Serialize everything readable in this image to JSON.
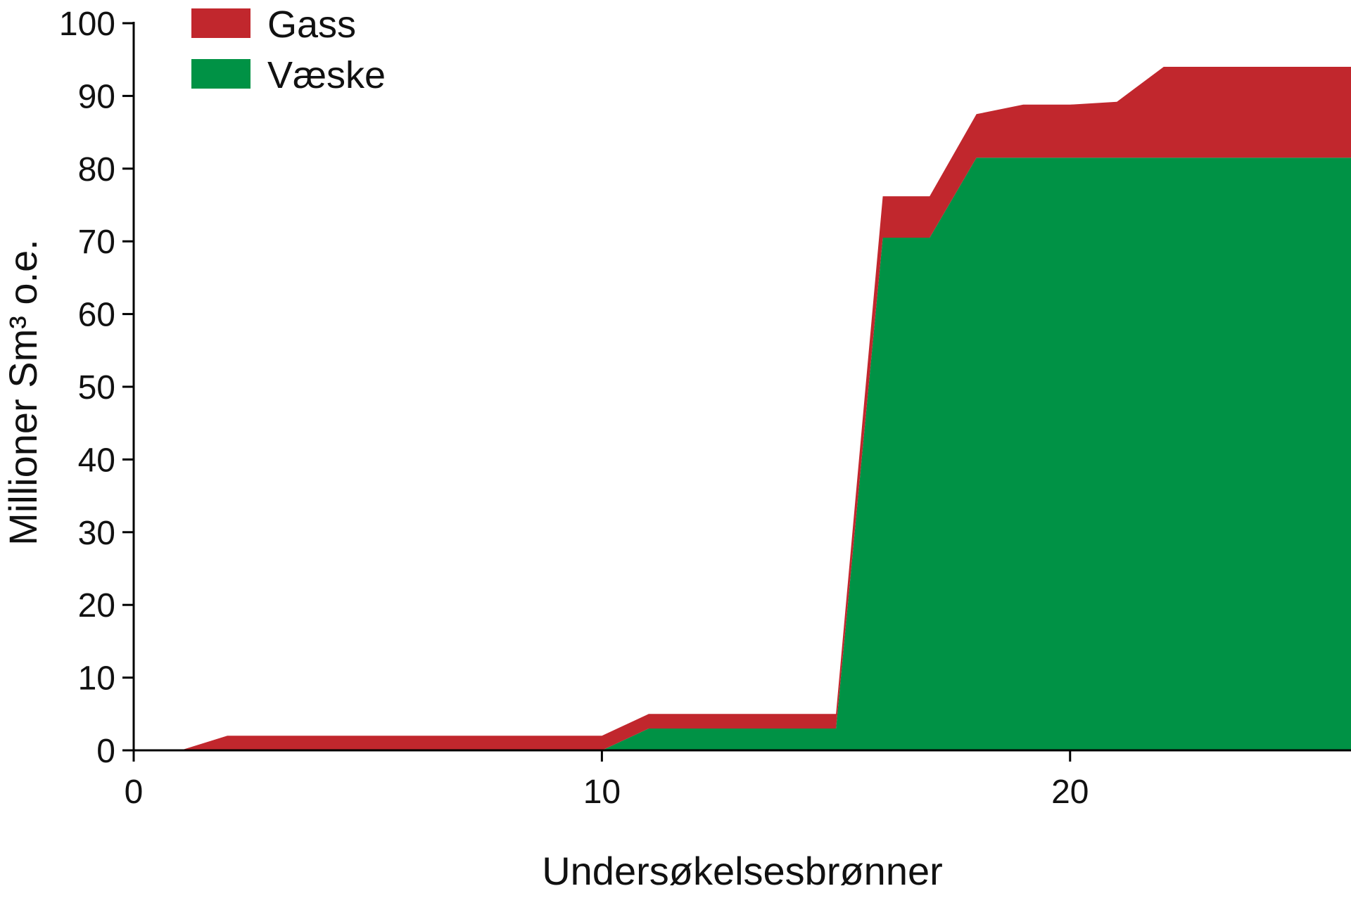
{
  "chart_data": {
    "type": "area",
    "stacked": true,
    "title": "",
    "xlabel": "Undersøkelsesbrønner",
    "ylabel": "Millioner Sm³ o.e.",
    "xlim": [
      0,
      26
    ],
    "ylim": [
      0,
      100
    ],
    "xticks": [
      0,
      10,
      20
    ],
    "yticks": [
      0,
      10,
      20,
      30,
      40,
      50,
      60,
      70,
      80,
      90,
      100
    ],
    "grid": false,
    "legend_position": "top-left",
    "x": [
      1,
      2,
      3,
      4,
      5,
      6,
      7,
      8,
      9,
      10,
      11,
      12,
      13,
      14,
      15,
      16,
      17,
      18,
      19,
      20,
      21,
      22,
      23,
      24,
      25,
      26
    ],
    "series": [
      {
        "name": "Væske",
        "color": "#009245",
        "values": [
          0,
          0,
          0,
          0,
          0,
          0,
          0,
          0,
          0,
          0,
          3,
          3,
          3,
          3,
          3,
          70.5,
          70.5,
          81.5,
          81.5,
          81.5,
          81.5,
          81.5,
          81.5,
          81.5,
          81.5,
          81.5
        ]
      },
      {
        "name": "Gass",
        "color": "#c1272d",
        "values": [
          0,
          2,
          2,
          2,
          2,
          2,
          2,
          2,
          2,
          2,
          2,
          2,
          2,
          2,
          2,
          5.7,
          5.7,
          6,
          7.3,
          7.3,
          7.7,
          12.5,
          12.5,
          12.5,
          12.5,
          12.5
        ]
      }
    ]
  }
}
